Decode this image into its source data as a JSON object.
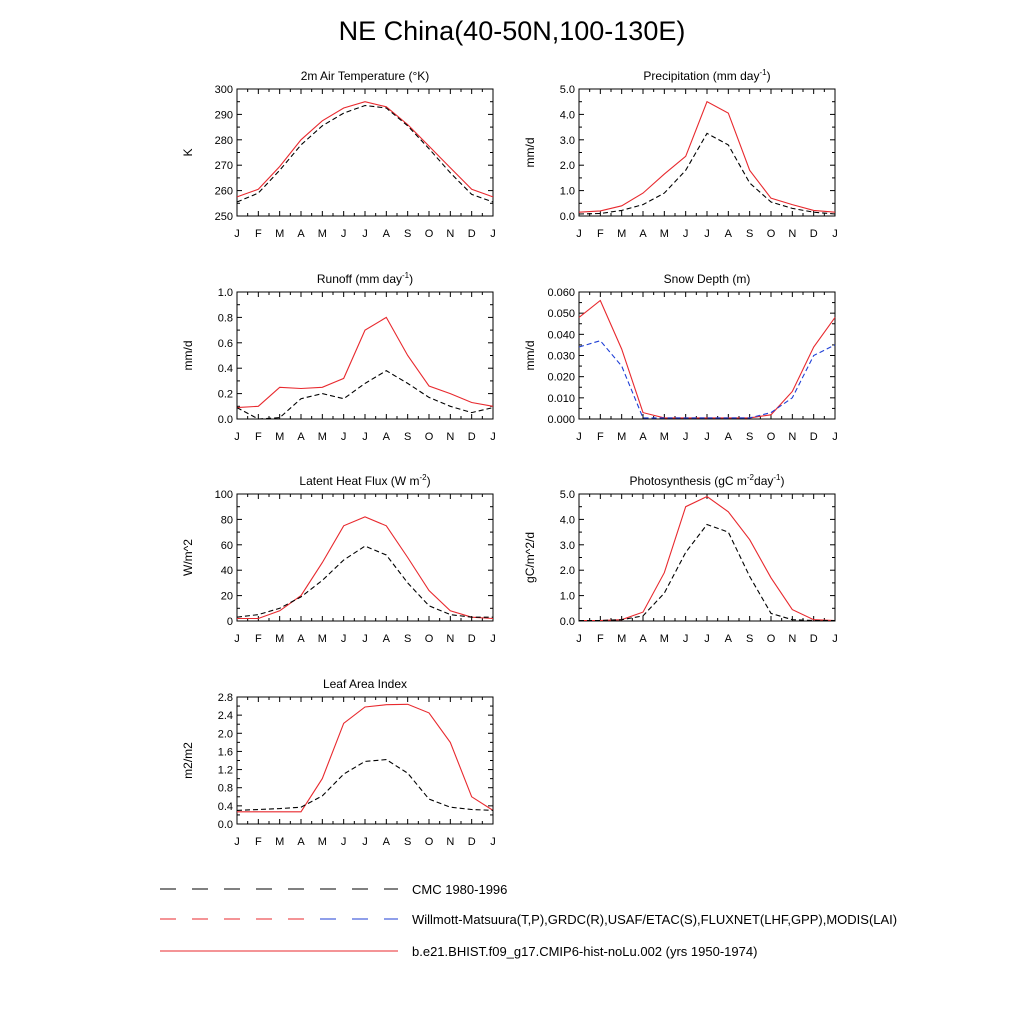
{
  "title": "NE China(40-50N,100-130E)",
  "months": [
    "J",
    "F",
    "M",
    "A",
    "M",
    "J",
    "J",
    "A",
    "S",
    "O",
    "N",
    "D",
    "J"
  ],
  "colors": {
    "model": "#e8292e",
    "obs1": "#000000",
    "obs2": "#1f3fd6"
  },
  "chart_data": [
    {
      "type": "line",
      "title": "2m Air Temperature (°K)",
      "ylabel": "K",
      "ylim": [
        250,
        300
      ],
      "yticks": [
        "250",
        "260",
        "270",
        "280",
        "290",
        "300"
      ],
      "series": [
        {
          "role": "model",
          "values": [
            257.5,
            260.5,
            269.5,
            280,
            287.5,
            292.5,
            295,
            293,
            286,
            277.5,
            269,
            260.5,
            257.5
          ]
        },
        {
          "role": "obs1",
          "values": [
            255.5,
            259,
            268,
            278,
            285.5,
            290.5,
            293.5,
            292.5,
            285.5,
            276.5,
            267,
            258.5,
            255.5
          ]
        }
      ]
    },
    {
      "type": "line",
      "title": "Precipitation (mm day⁻¹)",
      "ylabel": "mm/d",
      "ylim": [
        0,
        5
      ],
      "yticks": [
        "0.0",
        "1.0",
        "2.0",
        "3.0",
        "4.0",
        "5.0"
      ],
      "series": [
        {
          "role": "model",
          "values": [
            0.15,
            0.2,
            0.4,
            0.9,
            1.65,
            2.35,
            4.5,
            4.05,
            1.8,
            0.7,
            0.45,
            0.22,
            0.15
          ]
        },
        {
          "role": "obs1",
          "values": [
            0.08,
            0.1,
            0.22,
            0.45,
            0.9,
            1.8,
            3.25,
            2.8,
            1.3,
            0.55,
            0.3,
            0.15,
            0.08
          ]
        }
      ]
    },
    {
      "type": "line",
      "title": "Runoff (mm day⁻¹)",
      "ylabel": "mm/d",
      "ylim": [
        0,
        1
      ],
      "yticks": [
        "0.0",
        "0.2",
        "0.4",
        "0.6",
        "0.8",
        "1.0"
      ],
      "series": [
        {
          "role": "model",
          "values": [
            0.09,
            0.1,
            0.25,
            0.24,
            0.25,
            0.32,
            0.7,
            0.8,
            0.5,
            0.26,
            0.2,
            0.13,
            0.1
          ]
        },
        {
          "role": "obs1",
          "values": [
            0.09,
            0.0,
            0.01,
            0.16,
            0.2,
            0.16,
            0.28,
            0.38,
            0.28,
            0.17,
            0.1,
            0.05,
            0.09
          ]
        }
      ]
    },
    {
      "type": "line",
      "title": "Snow Depth (m)",
      "ylabel": "mm/d",
      "ylim": [
        0,
        0.06
      ],
      "yticks": [
        "0.000",
        "0.010",
        "0.020",
        "0.030",
        "0.040",
        "0.050",
        "0.060"
      ],
      "series": [
        {
          "role": "model",
          "values": [
            0.048,
            0.056,
            0.033,
            0.003,
            0.0005,
            0.0005,
            0.0005,
            0.0005,
            0.0005,
            0.002,
            0.013,
            0.034,
            0.048
          ]
        },
        {
          "role": "obs2",
          "values": [
            0.034,
            0.037,
            0.025,
            0.0005,
            0.0005,
            0.0005,
            0.0005,
            0.0005,
            0.0005,
            0.003,
            0.01,
            0.03,
            0.035
          ]
        },
        {
          "role": "obs1",
          "values": [
            0,
            0,
            0,
            0,
            0,
            0,
            0,
            0,
            0,
            0,
            0,
            0,
            0
          ]
        }
      ]
    },
    {
      "type": "line",
      "title": "Latent Heat Flux (W m⁻²)",
      "ylabel": "W/m^2",
      "ylim": [
        0,
        100
      ],
      "yticks": [
        "0",
        "20",
        "40",
        "60",
        "80",
        "100"
      ],
      "series": [
        {
          "role": "model",
          "values": [
            2,
            2,
            8,
            20,
            46,
            75,
            82,
            75,
            50,
            24,
            8,
            3,
            2
          ]
        },
        {
          "role": "obs1",
          "values": [
            3,
            5,
            10,
            19,
            32,
            48,
            59,
            52,
            30,
            12,
            5,
            3,
            3
          ]
        }
      ]
    },
    {
      "type": "line",
      "title": "Photosynthesis (gC m⁻²day⁻¹)",
      "ylabel": "gC/m^2/d",
      "ylim": [
        0,
        5
      ],
      "yticks": [
        "0.0",
        "1.0",
        "2.0",
        "3.0",
        "4.0",
        "5.0"
      ],
      "series": [
        {
          "role": "model",
          "values": [
            0.02,
            0.02,
            0.05,
            0.35,
            1.9,
            4.5,
            4.9,
            4.3,
            3.2,
            1.7,
            0.45,
            0.05,
            0.02
          ]
        },
        {
          "role": "obs1",
          "values": [
            0.02,
            0.02,
            0.05,
            0.2,
            1.1,
            2.7,
            3.8,
            3.5,
            1.75,
            0.3,
            0.05,
            0.02,
            0.02
          ]
        }
      ]
    },
    {
      "type": "line",
      "title": "Leaf Area Index",
      "ylabel": "m2/m2",
      "ylim": [
        0,
        2.8
      ],
      "yticks": [
        "0.0",
        "0.4",
        "0.8",
        "1.2",
        "1.6",
        "2.0",
        "2.4",
        "2.8"
      ],
      "series": [
        {
          "role": "model",
          "values": [
            0.27,
            0.27,
            0.27,
            0.27,
            1.0,
            2.22,
            2.58,
            2.63,
            2.64,
            2.45,
            1.8,
            0.6,
            0.3
          ]
        },
        {
          "role": "obs1",
          "values": [
            0.3,
            0.32,
            0.34,
            0.37,
            0.62,
            1.1,
            1.38,
            1.42,
            1.12,
            0.55,
            0.37,
            0.32,
            0.3
          ]
        }
      ]
    }
  ],
  "legend": [
    {
      "label": "CMC 1980-1996",
      "style": "dashed",
      "colors": [
        "#000000"
      ]
    },
    {
      "label": "Willmott-Matsuura(T,P),GRDC(R),USAF/ETAC(S),FLUXNET(LHF,GPP),MODIS(LAI)",
      "style": "dashed",
      "colors": [
        "#e8292e",
        "#1f3fd6"
      ]
    },
    {
      "label": "b.e21.BHIST.f09_g17.CMIP6-hist-noLu.002 (yrs 1950-1974)",
      "style": "solid",
      "colors": [
        "#e8292e"
      ]
    }
  ]
}
